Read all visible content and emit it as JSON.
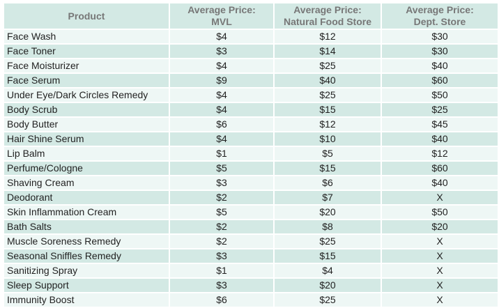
{
  "table": {
    "headers": [
      "Product",
      "Average Price:\nMVL",
      "Average Price:\nNatural Food Store",
      "Average Price:\nDept. Store"
    ],
    "rows": [
      [
        "Face Wash",
        "$4",
        "$12",
        "$30"
      ],
      [
        "Face Toner",
        "$3",
        "$14",
        "$30"
      ],
      [
        "Face Moisturizer",
        "$4",
        "$25",
        "$40"
      ],
      [
        "Face Serum",
        "$9",
        "$40",
        "$60"
      ],
      [
        "Under Eye/Dark Circles Remedy",
        "$4",
        "$25",
        "$50"
      ],
      [
        "Body Scrub",
        "$4",
        "$15",
        "$25"
      ],
      [
        "Body Butter",
        "$6",
        "$12",
        "$45"
      ],
      [
        "Hair Shine Serum",
        "$4",
        "$10",
        "$40"
      ],
      [
        "Lip Balm",
        "$1",
        "$5",
        "$12"
      ],
      [
        "Perfume/Cologne",
        "$5",
        "$15",
        "$60"
      ],
      [
        "Shaving Cream",
        "$3",
        "$6",
        "$40"
      ],
      [
        "Deodorant",
        "$2",
        "$7",
        "X"
      ],
      [
        "Skin Inflammation Cream",
        "$5",
        "$20",
        "$50"
      ],
      [
        "Bath Salts",
        "$2",
        "$8",
        "$20"
      ],
      [
        "Muscle Soreness Remedy",
        "$2",
        "$25",
        "X"
      ],
      [
        "Seasonal Sniffles Remedy",
        "$3",
        "$15",
        "X"
      ],
      [
        "Sanitizing Spray",
        "$1",
        "$4",
        "X"
      ],
      [
        "Sleep Support",
        "$3",
        "$20",
        "X"
      ],
      [
        "Immunity Boost",
        "$6",
        "$25",
        "X"
      ]
    ]
  },
  "colors": {
    "header_bg": "#d3e9e4",
    "row_light": "#eef7f5",
    "row_dark": "#d3e9e4",
    "header_text": "#777777",
    "cell_text": "#222222"
  }
}
